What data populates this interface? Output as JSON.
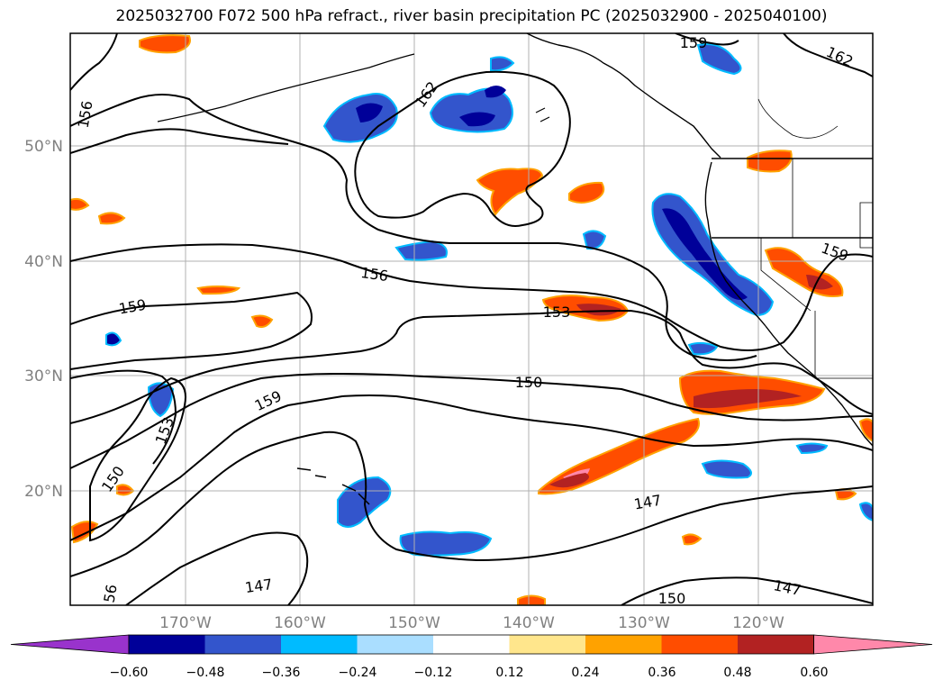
{
  "title": "2025032700 F072 500 hPa refract., river basin precipitation PC (2025032900 - 2025040100)",
  "lat_labels": [
    "50°N",
    "40°N",
    "30°N",
    "20°N"
  ],
  "lon_labels": [
    "170°W",
    "160°W",
    "150°W",
    "140°W",
    "130°W",
    "120°W"
  ],
  "contour_labels": [
    {
      "text": "156",
      "name": "contour-label-156-nw"
    },
    {
      "text": "162",
      "name": "contour-label-162-center"
    },
    {
      "text": "159",
      "name": "contour-label-159-top"
    },
    {
      "text": "162",
      "name": "contour-label-162-ne"
    },
    {
      "text": "156",
      "name": "contour-label-156-center"
    },
    {
      "text": "159",
      "name": "contour-label-159-west"
    },
    {
      "text": "153",
      "name": "contour-label-153-center"
    },
    {
      "text": "159",
      "name": "contour-label-159-east"
    },
    {
      "text": "150",
      "name": "contour-label-150-center"
    },
    {
      "text": "159",
      "name": "contour-label-159-sw"
    },
    {
      "text": "153",
      "name": "contour-label-153-west"
    },
    {
      "text": "150",
      "name": "contour-label-150-west"
    },
    {
      "text": "147",
      "name": "contour-label-147-east"
    },
    {
      "text": "147",
      "name": "contour-label-147-south"
    },
    {
      "text": "150",
      "name": "contour-label-150-south"
    },
    {
      "text": "147",
      "name": "contour-label-147-se"
    },
    {
      "text": "56",
      "name": "contour-label-56-sw"
    }
  ],
  "colorbar": {
    "ticks": [
      "−0.60",
      "−0.48",
      "−0.36",
      "−0.24",
      "−0.12",
      "0.12",
      "0.24",
      "0.36",
      "0.48",
      "0.60"
    ],
    "colors": [
      "#9933cc",
      "#000099",
      "#3355cc",
      "#00bbff",
      "#aadeff",
      "#ffffff",
      "#ffe68c",
      "#ffa200",
      "#ff4d00",
      "#b22222",
      "#ff88aa"
    ]
  }
}
